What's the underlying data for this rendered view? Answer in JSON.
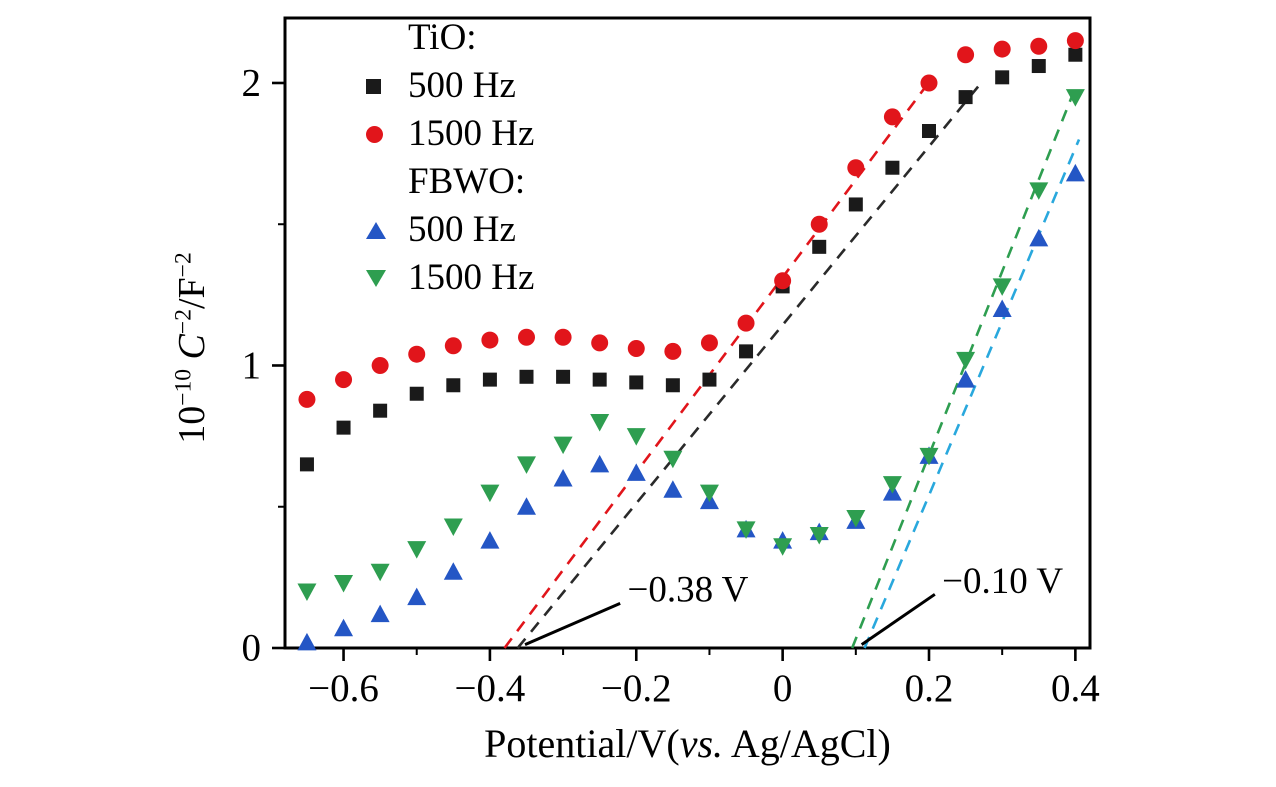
{
  "figure": {
    "background": "#ffffff",
    "axis_color": "#000000"
  },
  "axes": {
    "x": {
      "min": -0.68,
      "max": 0.42,
      "ticks": [
        -0.6,
        -0.4,
        -0.2,
        0,
        0.2,
        0.4
      ],
      "tick_labels": [
        "−0.6",
        "−0.4",
        "−0.2",
        "0",
        "0.2",
        "0.4"
      ],
      "minor_ticks": [
        -0.5,
        -0.3,
        -0.1,
        0.1,
        0.3
      ],
      "title": {
        "pre": "Potential/V(",
        "italic": "vs.",
        "post": " Ag/AgCl)"
      }
    },
    "y": {
      "min": 0,
      "max": 2.23,
      "ticks": [
        0,
        1,
        2
      ],
      "tick_labels": [
        "0",
        "1",
        "2"
      ],
      "minor_ticks": [
        0.5,
        1.5
      ],
      "title": {
        "base": "10",
        "base_exp": "−10",
        "space": " ",
        "var": "C",
        "var_exp": "−2",
        "denom": "/F",
        "denom_exp": "−2"
      }
    }
  },
  "legend": {
    "groups": [
      {
        "title": "TiO:",
        "items": [
          {
            "label": "500 Hz",
            "marker": "square",
            "color": "#1a1a1a"
          },
          {
            "label": "1500 Hz",
            "marker": "circle",
            "color": "#e1151b"
          }
        ]
      },
      {
        "title": "FBWO:",
        "items": [
          {
            "label": "500 Hz",
            "marker": "triangle-up",
            "color": "#2456c5"
          },
          {
            "label": "1500 Hz",
            "marker": "triangle-down",
            "color": "#2e9e50"
          }
        ]
      }
    ]
  },
  "chart_data": {
    "type": "scatter",
    "title": "",
    "xlabel": "Potential/V(vs. Ag/AgCl)",
    "ylabel": "10⁻¹⁰ C⁻²/F⁻²",
    "xlim": [
      -0.68,
      0.42
    ],
    "ylim": [
      0,
      2.23
    ],
    "grid": false,
    "legend_position": "upper-left-inside",
    "series": [
      {
        "name": "TiO 500 Hz",
        "marker": "square",
        "color": "#1a1a1a",
        "x": [
          -0.65,
          -0.6,
          -0.55,
          -0.5,
          -0.45,
          -0.4,
          -0.35,
          -0.3,
          -0.25,
          -0.2,
          -0.15,
          -0.1,
          -0.05,
          0.0,
          0.05,
          0.1,
          0.15,
          0.2,
          0.25,
          0.3,
          0.35,
          0.4
        ],
        "y": [
          0.65,
          0.78,
          0.84,
          0.9,
          0.93,
          0.95,
          0.96,
          0.96,
          0.95,
          0.94,
          0.93,
          0.95,
          1.05,
          1.28,
          1.42,
          1.57,
          1.7,
          1.83,
          1.95,
          2.02,
          2.06,
          2.1
        ]
      },
      {
        "name": "TiO 1500 Hz",
        "marker": "circle",
        "color": "#e1151b",
        "x": [
          -0.65,
          -0.6,
          -0.55,
          -0.5,
          -0.45,
          -0.4,
          -0.35,
          -0.3,
          -0.25,
          -0.2,
          -0.15,
          -0.1,
          -0.05,
          0.0,
          0.05,
          0.1,
          0.15,
          0.2,
          0.25,
          0.3,
          0.35,
          0.4
        ],
        "y": [
          0.88,
          0.95,
          1.0,
          1.04,
          1.07,
          1.09,
          1.1,
          1.1,
          1.08,
          1.06,
          1.05,
          1.08,
          1.15,
          1.3,
          1.5,
          1.7,
          1.88,
          2.0,
          2.1,
          2.12,
          2.13,
          2.15
        ]
      },
      {
        "name": "FBWO 500 Hz",
        "marker": "triangle-up",
        "color": "#2456c5",
        "x": [
          -0.65,
          -0.6,
          -0.55,
          -0.5,
          -0.45,
          -0.4,
          -0.35,
          -0.3,
          -0.25,
          -0.2,
          -0.15,
          -0.1,
          -0.05,
          0.0,
          0.05,
          0.1,
          0.15,
          0.2,
          0.25,
          0.3,
          0.35,
          0.4
        ],
        "y": [
          0.02,
          0.07,
          0.12,
          0.18,
          0.27,
          0.38,
          0.5,
          0.6,
          0.65,
          0.62,
          0.56,
          0.52,
          0.42,
          0.38,
          0.41,
          0.45,
          0.55,
          0.68,
          0.95,
          1.2,
          1.45,
          1.68
        ]
      },
      {
        "name": "FBWO 1500 Hz",
        "marker": "triangle-down",
        "color": "#2e9e50",
        "x": [
          -0.65,
          -0.6,
          -0.55,
          -0.5,
          -0.45,
          -0.4,
          -0.35,
          -0.3,
          -0.25,
          -0.2,
          -0.15,
          -0.1,
          -0.05,
          0.0,
          0.05,
          0.1,
          0.15,
          0.2,
          0.25,
          0.3,
          0.35,
          0.4
        ],
        "y": [
          0.2,
          0.23,
          0.27,
          0.35,
          0.43,
          0.55,
          0.65,
          0.72,
          0.8,
          0.75,
          0.67,
          0.55,
          0.42,
          0.36,
          0.4,
          0.46,
          0.58,
          0.68,
          1.02,
          1.28,
          1.62,
          1.95
        ]
      }
    ],
    "fit_lines": [
      {
        "name": "TiO 500 Hz extrapolation",
        "color": "#2a2a2a",
        "x": [
          -0.362,
          0.268
        ],
        "y": [
          0,
          1.99
        ]
      },
      {
        "name": "TiO 1500 Hz extrapolation",
        "color": "#e1151b",
        "x": [
          -0.38,
          0.205
        ],
        "y": [
          0,
          2.02
        ]
      },
      {
        "name": "FBWO 1500 Hz extrapolation",
        "color": "#2e9e50",
        "x": [
          0.095,
          0.398
        ],
        "y": [
          0,
          1.97
        ]
      },
      {
        "name": "FBWO 500 Hz extrapolation",
        "color": "#29a8dd",
        "x": [
          0.112,
          0.405
        ],
        "y": [
          0,
          1.8
        ]
      }
    ],
    "annotations": [
      {
        "text": "−0.38 V",
        "x": -0.212,
        "y": 0.205,
        "leader": {
          "x": [
            -0.352,
            -0.222
          ],
          "y": [
            0.012,
            0.158
          ]
        }
      },
      {
        "text": "−0.10 V",
        "x": 0.218,
        "y": 0.235,
        "leader": {
          "x": [
            0.108,
            0.208
          ],
          "y": [
            0.012,
            0.19
          ]
        }
      }
    ]
  }
}
